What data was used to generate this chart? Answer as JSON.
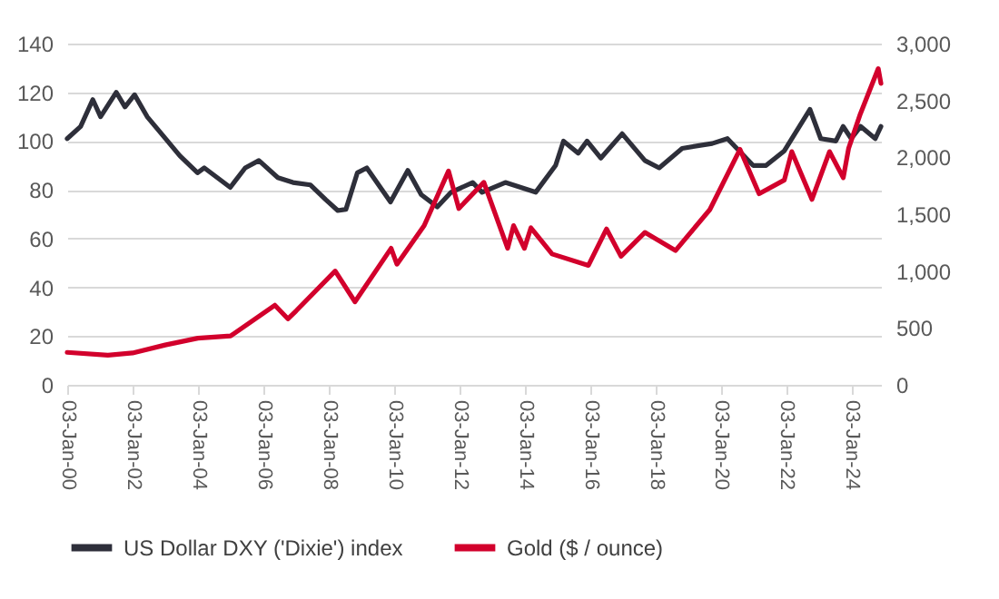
{
  "chart_data": {
    "type": "line",
    "xlim": [
      "2000-01-03",
      "2024-11-29"
    ],
    "xticks": [
      {
        "value": "2000-01-03",
        "label": "03-Jan-00"
      },
      {
        "value": "2002-01-03",
        "label": "03-Jan-02"
      },
      {
        "value": "2004-01-03",
        "label": "03-Jan-04"
      },
      {
        "value": "2006-01-03",
        "label": "03-Jan-06"
      },
      {
        "value": "2008-01-03",
        "label": "03-Jan-08"
      },
      {
        "value": "2010-01-03",
        "label": "03-Jan-10"
      },
      {
        "value": "2012-01-03",
        "label": "03-Jan-12"
      },
      {
        "value": "2014-01-03",
        "label": "03-Jan-14"
      },
      {
        "value": "2016-01-03",
        "label": "03-Jan-16"
      },
      {
        "value": "2018-01-03",
        "label": "03-Jan-18"
      },
      {
        "value": "2020-01-03",
        "label": "03-Jan-20"
      },
      {
        "value": "2022-01-03",
        "label": "03-Jan-22"
      },
      {
        "value": "2024-01-03",
        "label": "03-Jan-24"
      }
    ],
    "ylim": [
      0,
      140
    ],
    "yticks": [
      0,
      20,
      40,
      60,
      80,
      100,
      120,
      140
    ],
    "y2lim": [
      0,
      3000
    ],
    "y2ticks": [
      {
        "value": 0,
        "label": "0"
      },
      {
        "value": 500,
        "label": "500"
      },
      {
        "value": 1000,
        "label": "1,000"
      },
      {
        "value": 1500,
        "label": "1,500"
      },
      {
        "value": 2000,
        "label": "2,000"
      },
      {
        "value": 2500,
        "label": "2,500"
      },
      {
        "value": 3000,
        "label": "3,000"
      }
    ],
    "grid": "y",
    "legend": "bottom",
    "line_style": "solid",
    "marker": "none",
    "series": [
      {
        "name": "US Dollar DXY ('Dixie') index",
        "color": "#2e2f3a",
        "x": [
          "2000-01-03",
          "2000-06-01",
          "2000-10-15",
          "2001-01-10",
          "2001-07-05",
          "2001-10-10",
          "2002-01-25",
          "2002-06-15",
          "2002-12-15",
          "2003-06-15",
          "2003-12-30",
          "2004-03-15",
          "2004-12-30",
          "2005-06-15",
          "2005-11-15",
          "2006-06-15",
          "2006-12-01",
          "2007-06-15",
          "2007-12-01",
          "2008-04-15",
          "2008-07-15",
          "2008-11-20",
          "2009-03-05",
          "2009-11-25",
          "2010-06-07",
          "2010-11-04",
          "2011-05-02",
          "2011-10-04",
          "2012-06-01",
          "2012-09-14",
          "2013-06-01",
          "2014-05-06",
          "2014-12-15",
          "2015-03-13",
          "2015-08-24",
          "2015-12-01",
          "2016-05-03",
          "2016-12-28",
          "2017-09-08",
          "2018-02-15",
          "2018-10-30",
          "2019-09-30",
          "2020-03-19",
          "2020-12-31",
          "2021-05-25",
          "2021-12-15",
          "2022-09-27",
          "2023-01-26",
          "2023-07-14",
          "2023-10-03",
          "2024-01-02",
          "2024-04-16",
          "2024-09-27",
          "2024-11-29"
        ],
        "values": [
          101,
          106,
          117,
          110,
          120,
          114,
          119,
          110,
          102,
          94,
          87,
          89,
          81,
          89,
          92,
          85,
          83,
          82,
          76,
          71.5,
          72,
          87,
          89,
          75,
          88,
          78,
          73,
          79,
          83,
          79,
          83,
          79,
          90,
          100,
          95,
          100,
          93,
          103,
          92,
          89,
          97,
          99,
          101,
          90,
          90,
          96,
          113,
          101,
          100,
          106,
          101,
          106,
          101,
          106
        ]
      },
      {
        "name": "Gold ($ / ounce)",
        "color": "#d2002c",
        "axis": "y2",
        "x": [
          "2000-01-03",
          "2001-04-02",
          "2002-01-02",
          "2003-01-02",
          "2004-01-02",
          "2005-01-03",
          "2006-05-12",
          "2006-10-05",
          "2007-01-05",
          "2008-03-17",
          "2008-10-24",
          "2009-12-02",
          "2010-02-05",
          "2010-12-07",
          "2011-09-05",
          "2011-12-29",
          "2012-10-04",
          "2013-06-27",
          "2013-09-01",
          "2013-12-31",
          "2014-03-14",
          "2014-11-06",
          "2015-12-17",
          "2016-07-06",
          "2016-12-15",
          "2017-09-08",
          "2018-08-16",
          "2019-09-04",
          "2020-08-06",
          "2021-03-08",
          "2021-12-15",
          "2022-03-08",
          "2022-10-20",
          "2023-05-04",
          "2023-10-05",
          "2023-12-04",
          "2024-04-12",
          "2024-10-30",
          "2024-11-29"
        ],
        "values": [
          285,
          260,
          280,
          350,
          410,
          430,
          700,
          580,
          650,
          1000,
          730,
          1200,
          1060,
          1400,
          1880,
          1550,
          1780,
          1200,
          1400,
          1200,
          1380,
          1150,
          1050,
          1370,
          1130,
          1340,
          1180,
          1540,
          2070,
          1680,
          1800,
          2050,
          1630,
          2050,
          1820,
          2080,
          2380,
          2780,
          2650
        ]
      }
    ]
  }
}
